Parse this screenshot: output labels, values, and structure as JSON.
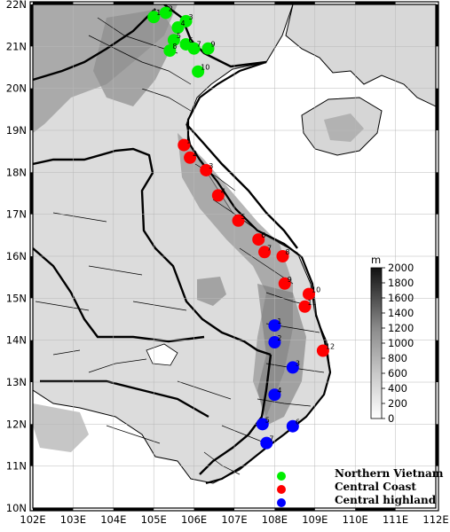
{
  "map": {
    "lon_range": [
      102,
      112
    ],
    "lat_range": [
      10,
      22
    ],
    "lon_ticks": [
      "102E",
      "103E",
      "104E",
      "105E",
      "106E",
      "107E",
      "108E",
      "109E",
      "110E",
      "111E",
      "112E"
    ],
    "lat_ticks": [
      "22N",
      "21N",
      "20N",
      "19N",
      "18N",
      "17N",
      "16N",
      "15N",
      "14N",
      "13N",
      "12N",
      "11N",
      "10N"
    ]
  },
  "colorbar": {
    "unit": "m",
    "ticks": [
      "2000",
      "1800",
      "1600",
      "1400",
      "1200",
      "1000",
      "800",
      "600",
      "400",
      "200",
      "0"
    ],
    "range": [
      0,
      2000
    ]
  },
  "legend": {
    "items": [
      {
        "label": "Northern Vietnam",
        "color": "#00ee00"
      },
      {
        "label": "Central Coast",
        "color": "#ff0000"
      },
      {
        "label": "Central highland",
        "color": "#0000ff"
      }
    ]
  },
  "stations": {
    "northern": {
      "color": "#00ee00",
      "points": [
        {
          "num": "1",
          "lon": 105.0,
          "lat": 21.7
        },
        {
          "num": "2",
          "lon": 105.3,
          "lat": 21.8
        },
        {
          "num": "3",
          "lon": 105.8,
          "lat": 21.6
        },
        {
          "num": "4",
          "lon": 105.6,
          "lat": 21.45
        },
        {
          "num": "5",
          "lon": 105.5,
          "lat": 21.15
        },
        {
          "num": "6",
          "lon": 105.8,
          "lat": 21.05
        },
        {
          "num": "7",
          "lon": 106.0,
          "lat": 20.95
        },
        {
          "num": "8",
          "lon": 105.4,
          "lat": 20.9
        },
        {
          "num": "9",
          "lon": 106.35,
          "lat": 20.95
        },
        {
          "num": "10",
          "lon": 106.1,
          "lat": 20.4
        }
      ]
    },
    "coast": {
      "color": "#ff0000",
      "points": [
        {
          "num": "1",
          "lon": 105.75,
          "lat": 18.65
        },
        {
          "num": "2",
          "lon": 105.9,
          "lat": 18.35
        },
        {
          "num": "3",
          "lon": 106.3,
          "lat": 18.05
        },
        {
          "num": "4",
          "lon": 106.6,
          "lat": 17.45
        },
        {
          "num": "5",
          "lon": 107.1,
          "lat": 16.85
        },
        {
          "num": "6",
          "lon": 107.6,
          "lat": 16.4
        },
        {
          "num": "7",
          "lon": 107.75,
          "lat": 16.1
        },
        {
          "num": "8",
          "lon": 108.2,
          "lat": 16.0
        },
        {
          "num": "9",
          "lon": 108.25,
          "lat": 15.35
        },
        {
          "num": "10",
          "lon": 108.85,
          "lat": 15.1
        },
        {
          "num": "11",
          "lon": 108.75,
          "lat": 14.8
        },
        {
          "num": "12",
          "lon": 109.2,
          "lat": 13.75
        }
      ]
    },
    "highland": {
      "color": "#0000ff",
      "points": [
        {
          "num": "1",
          "lon": 108.0,
          "lat": 14.35
        },
        {
          "num": "2",
          "lon": 108.0,
          "lat": 13.95
        },
        {
          "num": "3",
          "lon": 108.45,
          "lat": 13.35
        },
        {
          "num": "4",
          "lon": 108.0,
          "lat": 12.7
        },
        {
          "num": "5",
          "lon": 107.7,
          "lat": 12.0
        },
        {
          "num": "6",
          "lon": 108.45,
          "lat": 11.95
        },
        {
          "num": "7",
          "lon": 107.8,
          "lat": 11.55
        }
      ]
    }
  }
}
